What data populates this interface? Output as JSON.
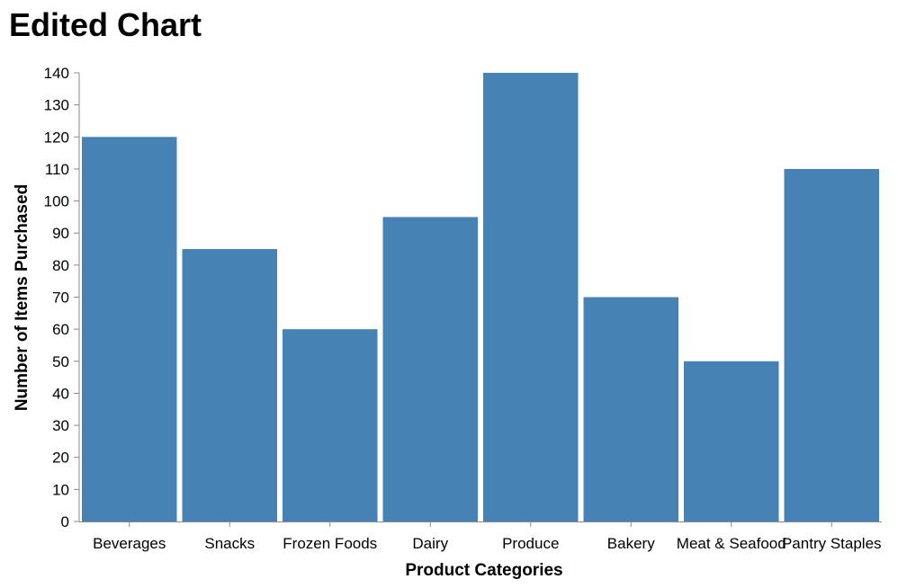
{
  "chart_data": {
    "type": "bar",
    "title": "Edited Chart",
    "xlabel": "Product Categories",
    "ylabel": "Number of Items Purchased",
    "categories": [
      "Beverages",
      "Snacks",
      "Frozen Foods",
      "Dairy",
      "Produce",
      "Bakery",
      "Meat & Seafood",
      "Pantry Staples"
    ],
    "values": [
      120,
      85,
      60,
      95,
      140,
      70,
      50,
      110
    ],
    "ylim": [
      0,
      140
    ],
    "yticks": [
      0,
      10,
      20,
      30,
      40,
      50,
      60,
      70,
      80,
      90,
      100,
      110,
      120,
      130,
      140
    ],
    "grid": false,
    "legend": "none",
    "colors": {
      "bar": "#4682b4",
      "axis": "#888888"
    }
  }
}
